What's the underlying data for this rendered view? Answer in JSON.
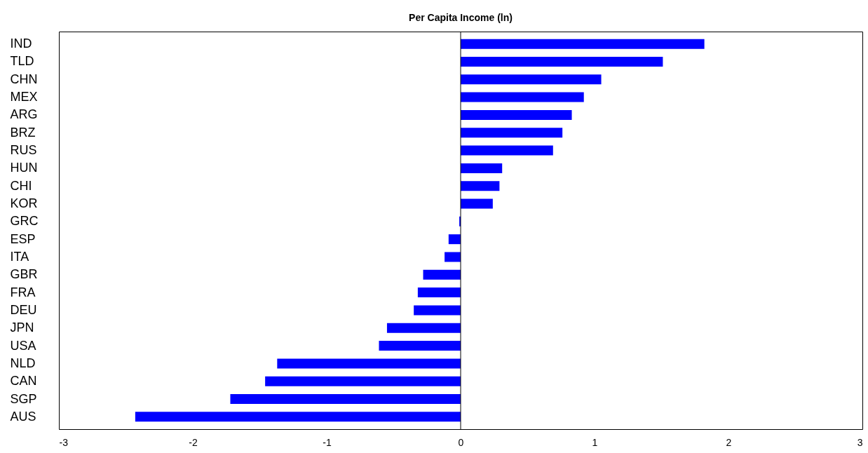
{
  "chart_data": {
    "type": "bar",
    "title": "Per Capita Income (ln)",
    "orientation": "horizontal",
    "categories": [
      "IND",
      "TLD",
      "CHN",
      "MEX",
      "ARG",
      "BRZ",
      "RUS",
      "HUN",
      "CHI",
      "KOR",
      "GRC",
      "ESP",
      "ITA",
      "GBR",
      "FRA",
      "DEU",
      "JPN",
      "USA",
      "NLD",
      "CAN",
      "SGP",
      "AUS"
    ],
    "values": [
      1.82,
      1.51,
      1.05,
      0.92,
      0.83,
      0.76,
      0.69,
      0.31,
      0.29,
      0.24,
      -0.01,
      -0.09,
      -0.12,
      -0.28,
      -0.32,
      -0.35,
      -0.55,
      -0.61,
      -1.37,
      -1.46,
      -1.72,
      -2.43
    ],
    "color": "#0000ff",
    "xlim": [
      -3,
      3
    ],
    "xticks": [
      -3,
      -2,
      -1,
      0,
      1,
      2,
      3
    ],
    "ref_lines": [
      {
        "axis": "x",
        "value": 0,
        "color": "#000000"
      }
    ],
    "grid": false
  }
}
